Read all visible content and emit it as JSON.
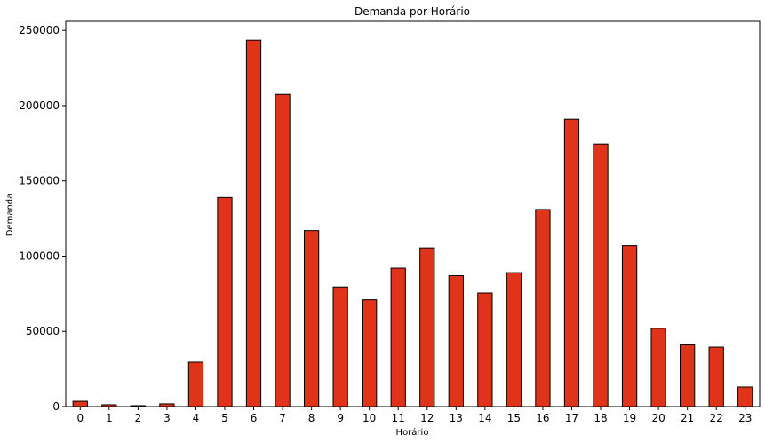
{
  "chart_data": {
    "type": "bar",
    "title": "Demanda por Horário",
    "xlabel": "Horário",
    "ylabel": "Demanda",
    "categories": [
      "0",
      "1",
      "2",
      "3",
      "4",
      "5",
      "6",
      "7",
      "8",
      "9",
      "10",
      "11",
      "12",
      "13",
      "14",
      "15",
      "16",
      "17",
      "18",
      "19",
      "20",
      "21",
      "22",
      "23"
    ],
    "values": [
      3500,
      1200,
      600,
      1800,
      29500,
      139000,
      243500,
      207500,
      117000,
      79500,
      71000,
      92000,
      105500,
      87000,
      75500,
      89000,
      131000,
      191000,
      174500,
      107000,
      52000,
      41000,
      39500,
      13000
    ],
    "ylim": [
      0,
      256000
    ],
    "yticks": [
      0,
      50000,
      100000,
      150000,
      200000,
      250000
    ],
    "ytick_labels": [
      "0",
      "50000",
      "100000",
      "150000",
      "200000",
      "250000"
    ],
    "bar_color": "#e0341a",
    "edge_color": "#000000",
    "grid": false,
    "legend": "none"
  }
}
